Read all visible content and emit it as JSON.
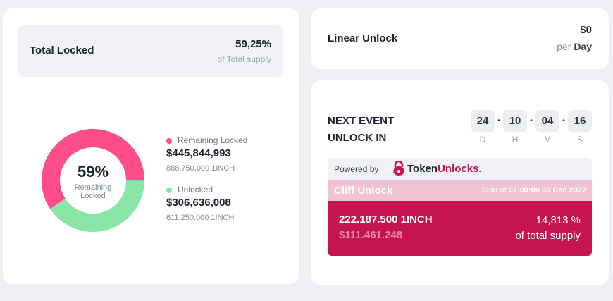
{
  "total_locked": {
    "title": "Total Locked",
    "percent": "59,25%",
    "subtitle": "of Total supply",
    "donut": {
      "center_percent": "59%",
      "center_label": "Remaining Locked",
      "locked_fraction": 0.5925,
      "colors": {
        "locked": "#ff4d8a",
        "unlocked": "#8ae6a6"
      }
    },
    "legend": [
      {
        "name": "Remaining Locked",
        "value": "$445,844,993",
        "tokens": "888,750,000 1INCH",
        "color": "#ff4d8a"
      },
      {
        "name": "Unlocked",
        "value": "$306,636,008",
        "tokens": "611,250,000 1INCH",
        "color": "#8ae6a6"
      }
    ]
  },
  "linear_unlock": {
    "title": "Linear Unlock",
    "amount": "$0",
    "per_label": "per",
    "per_unit": "Day"
  },
  "next_event": {
    "title": "NEXT EVENT UNLOCK IN",
    "countdown": [
      {
        "value": "24",
        "unit": "D"
      },
      {
        "value": "10",
        "unit": "H"
      },
      {
        "value": "04",
        "unit": "M"
      },
      {
        "value": "16",
        "unit": "S"
      }
    ],
    "powered_by": "Powered by",
    "brand_token": "Token",
    "brand_unlocks": "Unlocks.",
    "cliff_title": "Cliff Unlock",
    "start_label": "Start at",
    "start_value": "07:00:00 30 Dec 2022",
    "amount": "222.187.500 1INCH",
    "usd": "$111.461.248",
    "percent": "14,813 %",
    "percent_label": "of total supply"
  },
  "colors": {
    "brand": "#c61352",
    "cliff_header": "#eec3d3"
  }
}
